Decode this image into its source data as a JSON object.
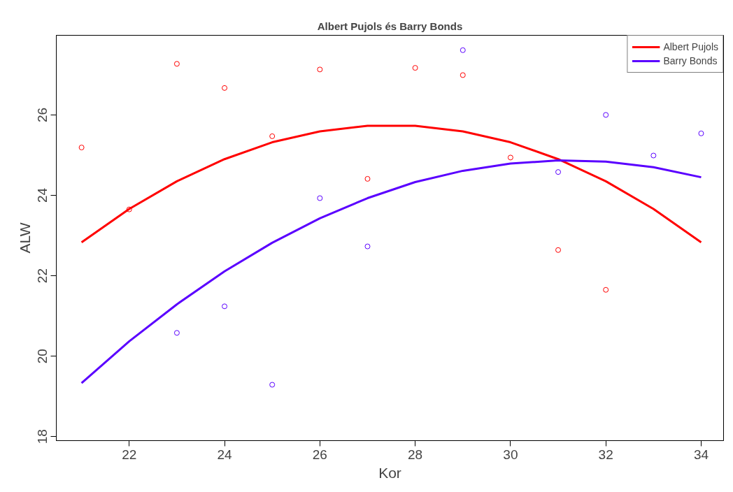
{
  "chart_data": {
    "type": "scatter",
    "title": "Albert Pujols és Barry Bonds",
    "xlabel": "Kor",
    "ylabel": "ALW",
    "xlim": [
      20.47,
      34.47
    ],
    "ylim": [
      17.9,
      27.98
    ],
    "xticks": [
      22,
      24,
      26,
      28,
      30,
      32,
      34
    ],
    "yticks": [
      18,
      20,
      22,
      24,
      26
    ],
    "grid": false,
    "legend": "top right",
    "series": [
      {
        "marker": "circle",
        "color": "#ff0000",
        "x": [
          21,
          22,
          23,
          24,
          25,
          26,
          27,
          28,
          29,
          30,
          31,
          32
        ],
        "values": [
          25.19,
          23.65,
          27.27,
          26.67,
          25.47,
          27.13,
          24.41,
          27.17,
          26.99,
          24.94,
          22.64,
          21.65
        ]
      },
      {
        "marker": "circle",
        "color": "#5a00ff",
        "x": [
          23,
          24,
          25,
          26,
          27,
          29,
          31,
          32,
          33,
          34
        ],
        "values": [
          20.58,
          21.24,
          19.29,
          23.93,
          22.73,
          27.61,
          24.58,
          26.0,
          24.99,
          25.54
        ]
      },
      {
        "type": "line",
        "marker": "none",
        "name": "Albert Pujols",
        "color": "#ff0000",
        "x": [
          21,
          22,
          23,
          24,
          25,
          26,
          27,
          28,
          29,
          30,
          31,
          32,
          33,
          34
        ],
        "values": [
          22.83,
          23.66,
          24.35,
          24.9,
          25.32,
          25.59,
          25.73,
          25.73,
          25.59,
          25.32,
          24.9,
          24.35,
          23.66,
          22.83
        ]
      },
      {
        "type": "line",
        "marker": "none",
        "name": "Barry Bonds",
        "color": "#5a00ff",
        "x": [
          21,
          22,
          23,
          24,
          25,
          26,
          27,
          28,
          29,
          30,
          31,
          32,
          33,
          34
        ],
        "values": [
          19.33,
          20.37,
          21.29,
          22.11,
          22.82,
          23.43,
          23.93,
          24.33,
          24.61,
          24.79,
          24.87,
          24.84,
          24.7,
          24.45
        ]
      }
    ]
  }
}
